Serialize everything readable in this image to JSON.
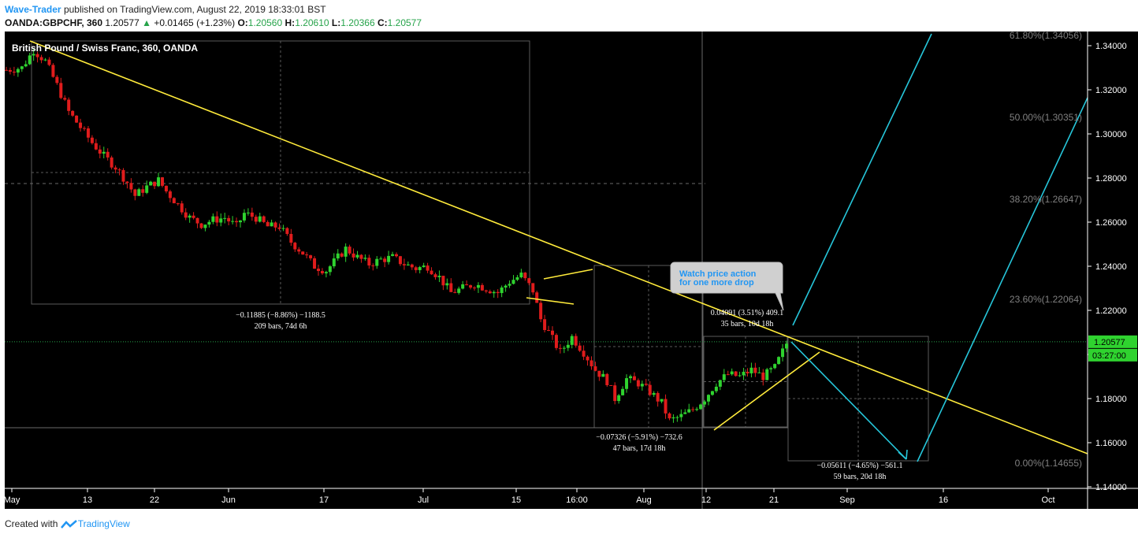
{
  "header": {
    "author": "Wave-Trader",
    "published_text": "published on TradingView.com, August 22, 2019 18:33:01 BST",
    "symbol_line": "OANDA:GBPCHF, 360",
    "last": "1.20577",
    "change": "+0.01465 (+1.23%)",
    "o_label": "O:",
    "o_val": "1.20560",
    "h_label": "H:",
    "h_val": "1.20610",
    "l_label": "L:",
    "l_val": "1.20366",
    "c_label": "C:",
    "c_val": "1.20577"
  },
  "footer": {
    "created_with": "Created with",
    "brand": "TradingView"
  },
  "colors": {
    "background": "#000000",
    "candle_up": "#2fd32f",
    "candle_down": "#e01c1c",
    "trendline": "#ffeb3b",
    "projection": "#26c6da",
    "fib_text": "#808080",
    "price_line": "#26a34a"
  },
  "chart_data": {
    "type": "candlestick",
    "title": "British Pound / Swiss Franc, 360, OANDA",
    "ylim": [
      1.14,
      1.345
    ],
    "y_ticks": [
      "1.34000",
      "1.32000",
      "1.30000",
      "1.28000",
      "1.26000",
      "1.24000",
      "1.22000",
      "1.20000",
      "1.18000",
      "1.16000",
      "1.14000"
    ],
    "x_ticks": [
      "May",
      "13",
      "22",
      "Jun",
      "17",
      "Jul",
      "15",
      "16:00",
      "Aug",
      "12",
      "21",
      "Sep",
      "16",
      "Oct"
    ],
    "current_price": "1.20577",
    "countdown": "03:27:00",
    "price_path": [
      [
        0,
        1.329
      ],
      [
        4,
        1.33
      ],
      [
        7,
        1.338
      ],
      [
        10,
        1.333
      ],
      [
        13,
        1.322
      ],
      [
        16,
        1.31
      ],
      [
        19,
        1.303
      ],
      [
        22,
        1.296
      ],
      [
        25,
        1.29
      ],
      [
        28,
        1.285
      ],
      [
        31,
        1.278
      ],
      [
        33,
        1.272
      ],
      [
        36,
        1.276
      ],
      [
        39,
        1.279
      ],
      [
        41,
        1.274
      ],
      [
        44,
        1.268
      ],
      [
        47,
        1.262
      ],
      [
        50,
        1.259
      ],
      [
        53,
        1.261
      ],
      [
        56,
        1.262
      ],
      [
        59,
        1.258
      ],
      [
        61,
        1.264
      ],
      [
        64,
        1.262
      ],
      [
        67,
        1.258
      ],
      [
        70,
        1.258
      ],
      [
        73,
        1.251
      ],
      [
        76,
        1.246
      ],
      [
        79,
        1.24
      ],
      [
        82,
        1.238
      ],
      [
        84,
        1.242
      ],
      [
        87,
        1.248
      ],
      [
        90,
        1.244
      ],
      [
        93,
        1.241
      ],
      [
        96,
        1.243
      ],
      [
        99,
        1.244
      ],
      [
        102,
        1.241
      ],
      [
        105,
        1.239
      ],
      [
        108,
        1.24
      ],
      [
        111,
        1.235
      ],
      [
        114,
        1.228
      ],
      [
        117,
        1.23
      ],
      [
        120,
        1.232
      ],
      [
        123,
        1.23
      ],
      [
        126,
        1.228
      ],
      [
        129,
        1.233
      ],
      [
        132,
        1.236
      ],
      [
        135,
        1.229
      ],
      [
        137,
        1.216
      ],
      [
        140,
        1.207
      ],
      [
        142,
        1.201
      ],
      [
        145,
        1.208
      ],
      [
        148,
        1.201
      ],
      [
        151,
        1.193
      ],
      [
        154,
        1.188
      ],
      [
        156,
        1.18
      ],
      [
        159,
        1.189
      ],
      [
        162,
        1.187
      ],
      [
        165,
        1.183
      ],
      [
        168,
        1.178
      ],
      [
        170,
        1.17
      ],
      [
        173,
        1.172
      ],
      [
        176,
        1.175
      ],
      [
        179,
        1.18
      ],
      [
        182,
        1.187
      ],
      [
        185,
        1.191
      ],
      [
        188,
        1.19
      ],
      [
        191,
        1.193
      ],
      [
        194,
        1.19
      ],
      [
        197,
        1.194
      ],
      [
        200,
        1.205
      ],
      [
        201,
        1.206
      ]
    ],
    "fib_levels": [
      {
        "label": "61.80%(1.34056)",
        "value": 1.34056
      },
      {
        "label": "50.00%(1.30351)",
        "value": 1.30351
      },
      {
        "label": "38.20%(1.26647)",
        "value": 1.26647
      },
      {
        "label": "23.60%(1.22064)",
        "value": 1.22064
      },
      {
        "label": "0.00%(1.14655)",
        "value": 1.14655
      }
    ],
    "measurements": [
      {
        "line1": "−0.11885 (−8.86%) −1188.5",
        "line2": "209 bars, 74d 6h"
      },
      {
        "line1": "−0.07326 (−5.91%) −732.6",
        "line2": "47 bars, 17d 18h"
      },
      {
        "line1": "0.04091 (3.51%) 409.1",
        "line2": "35 bars, 10d 18h"
      },
      {
        "line1": "−0.05611 (−4.65%) −561.1",
        "line2": "59 bars, 20d 18h"
      }
    ],
    "annotation": "Watch price action\nfor one more drop"
  }
}
